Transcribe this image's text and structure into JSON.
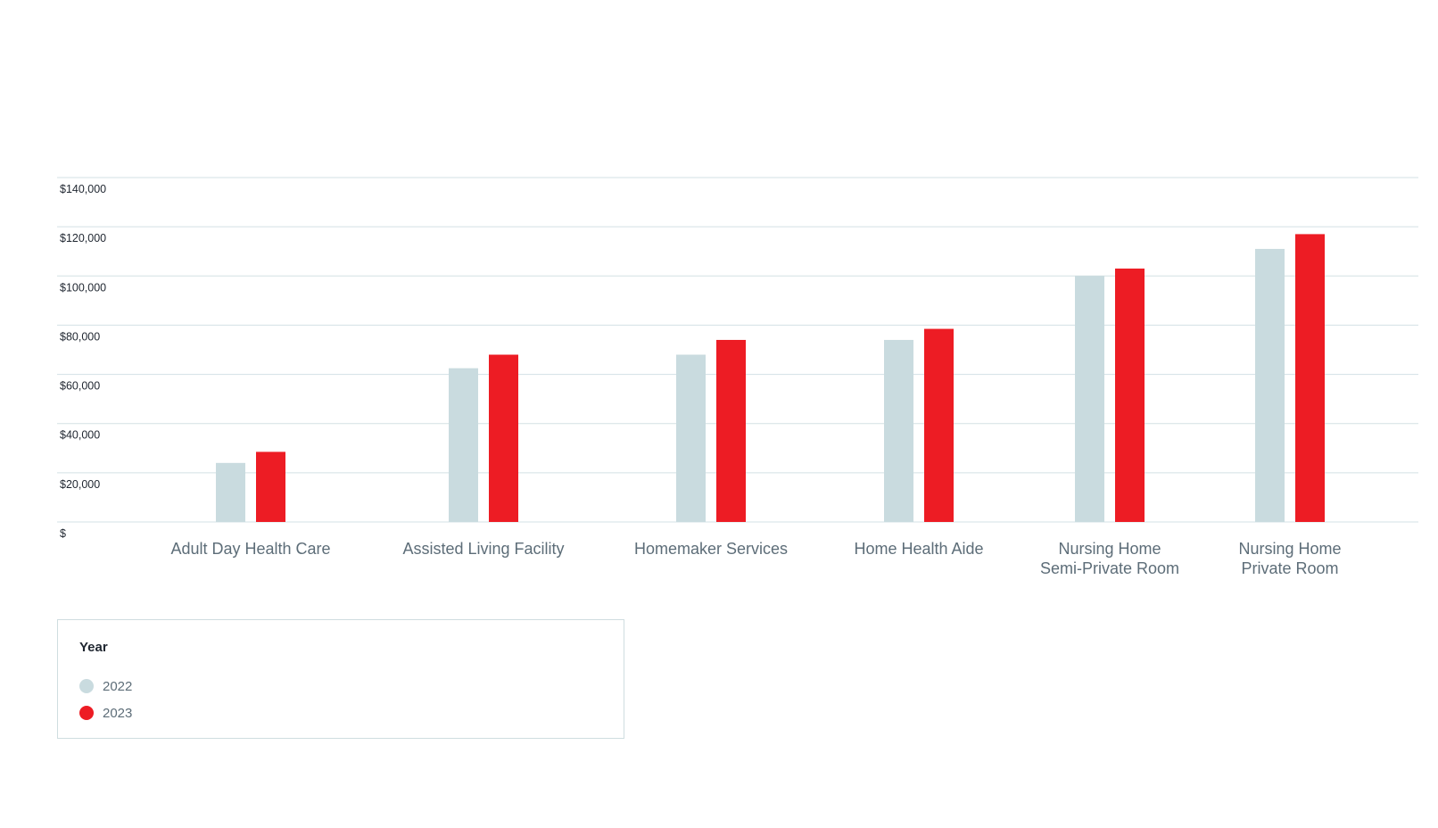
{
  "chart_data": {
    "type": "bar",
    "categories": [
      [
        "Adult Day Health Care"
      ],
      [
        "Assisted Living Facility"
      ],
      [
        "Homemaker Services"
      ],
      [
        "Home Health Aide"
      ],
      [
        "Nursing Home",
        "Semi-Private Room"
      ],
      [
        "Nursing Home",
        "Private Room"
      ]
    ],
    "series": [
      {
        "name": "2022",
        "color": "#c9dbdf",
        "values": [
          24000,
          62500,
          68000,
          74000,
          100000,
          111000
        ]
      },
      {
        "name": "2023",
        "color": "#ed1c24",
        "values": [
          28500,
          68000,
          74000,
          78500,
          103000,
          117000
        ]
      }
    ],
    "ylim": [
      0,
      140000
    ],
    "y_ticks": [
      0,
      20000,
      40000,
      60000,
      80000,
      100000,
      120000,
      140000
    ],
    "y_tick_labels": [
      "$",
      "$20,000",
      "$40,000",
      "$60,000",
      "$80,000",
      "$100,000",
      "$120,000",
      "$140,000"
    ],
    "grid": true,
    "legend_position": "bottom-left",
    "legend_title": "Year"
  },
  "legend": {
    "title": "Year",
    "items": [
      {
        "label": "2022",
        "color": "#c9dbdf"
      },
      {
        "label": "2023",
        "color": "#ed1c24"
      }
    ]
  }
}
